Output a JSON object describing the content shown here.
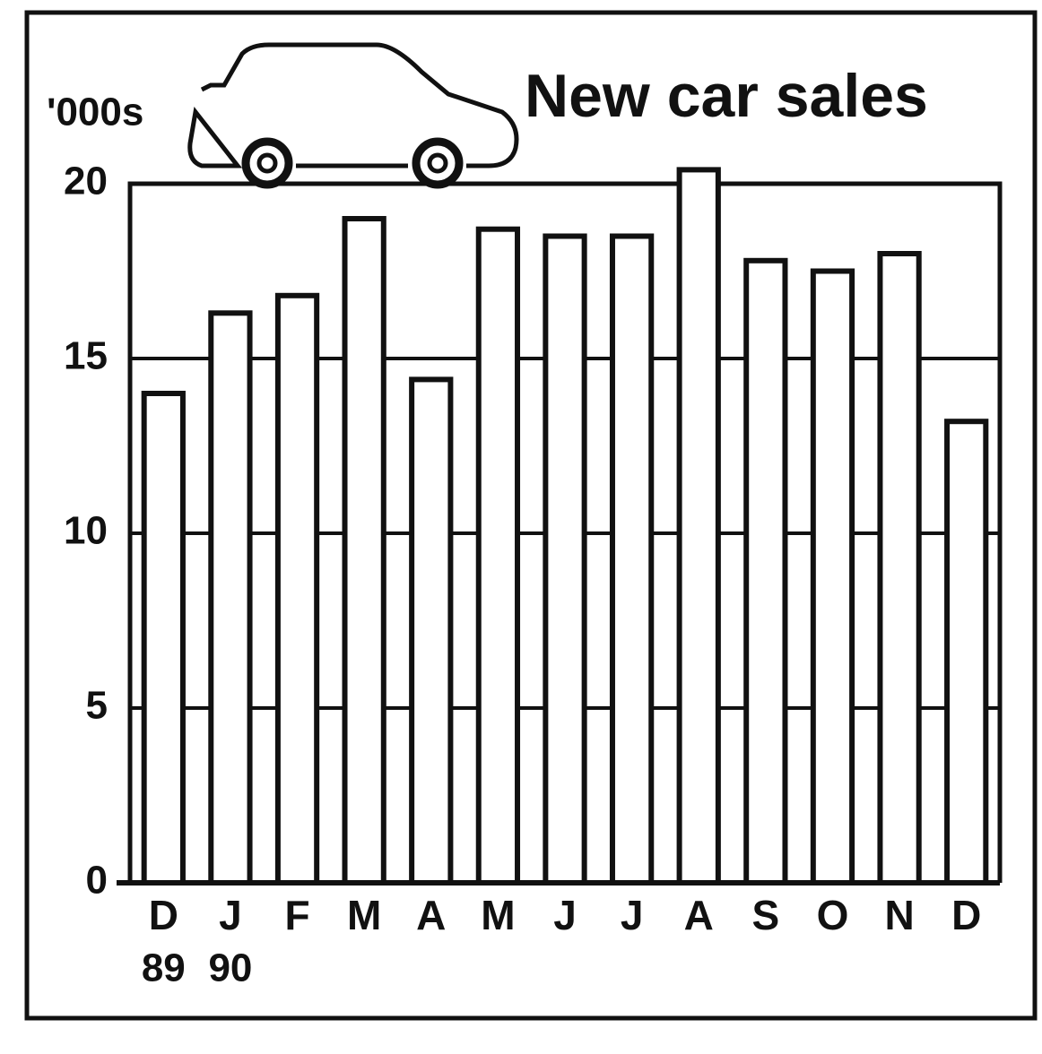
{
  "chart_data": {
    "type": "bar",
    "title": "New car sales",
    "y_label": "'000s",
    "categories": [
      "D",
      "J",
      "F",
      "M",
      "A",
      "M",
      "J",
      "J",
      "A",
      "S",
      "O",
      "N",
      "D"
    ],
    "x_sublabels": [
      "89",
      "90",
      null,
      null,
      null,
      null,
      null,
      null,
      null,
      null,
      null,
      null,
      null
    ],
    "values": [
      14.0,
      16.3,
      16.8,
      19.0,
      14.4,
      18.7,
      18.5,
      18.5,
      20.4,
      17.8,
      17.5,
      18.0,
      13.2
    ],
    "color": "#ffffff",
    "ylim": [
      0,
      20
    ],
    "yticks": [
      0,
      5,
      10,
      15,
      20
    ],
    "grid": true
  }
}
